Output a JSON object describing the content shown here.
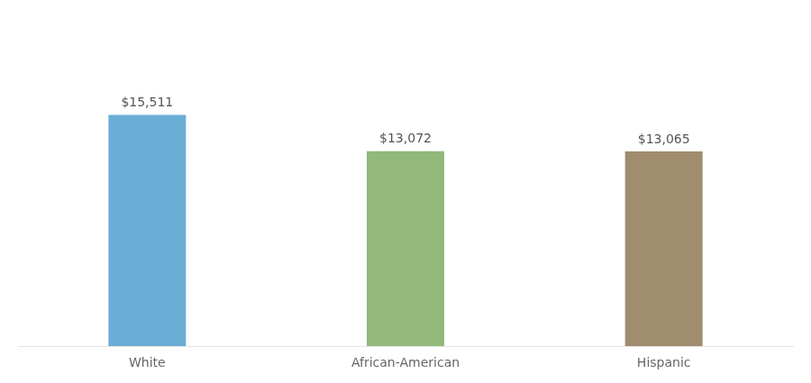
{
  "chart_data": {
    "type": "bar",
    "categories": [
      "White",
      "African-American",
      "Hispanic"
    ],
    "values": [
      15511,
      13072,
      13065
    ],
    "value_labels": [
      "$15,511",
      "$13,072",
      "$13,065"
    ],
    "colors": [
      "#6aaed6",
      "#92b87a",
      "#a08c6e"
    ],
    "ylim": [
      0,
      22000
    ],
    "grid": false,
    "data_labels": true,
    "tick_labels": "x"
  }
}
